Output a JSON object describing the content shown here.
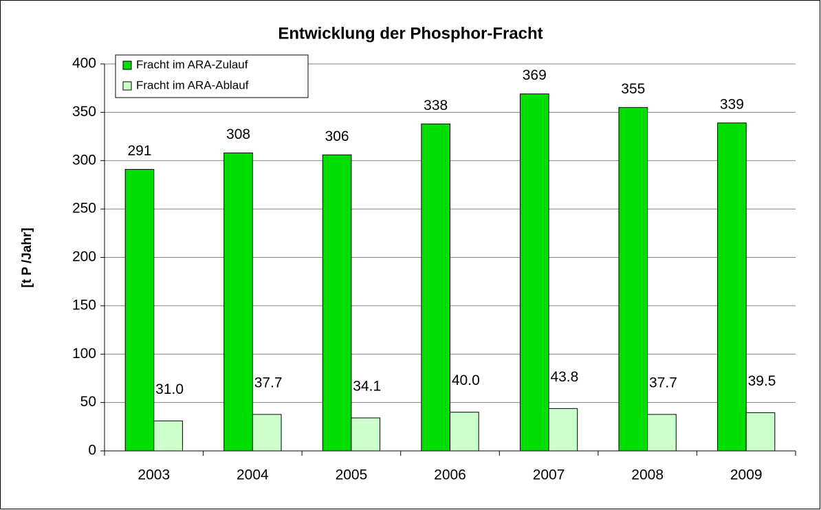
{
  "chart_data": {
    "type": "bar",
    "title": "Entwicklung der Phosphor-Fracht",
    "ylabel": "[t P /Jahr]",
    "categories": [
      "2003",
      "2004",
      "2005",
      "2006",
      "2007",
      "2008",
      "2009"
    ],
    "series": [
      {
        "name": "Fracht im ARA-Zulauf",
        "color": "#00dd00",
        "values": [
          291,
          308,
          306,
          338,
          369,
          355,
          339
        ]
      },
      {
        "name": "Fracht im ARA-Ablauf",
        "color": "#ccffcc",
        "values": [
          31.0,
          37.7,
          34.1,
          40.0,
          43.8,
          37.7,
          39.5
        ],
        "value_labels": [
          "31.0",
          "37.7",
          "34.1",
          "40.0",
          "43.8",
          "37.7",
          "39.5"
        ]
      }
    ],
    "ylim": [
      0,
      400
    ],
    "yticks": [
      0,
      50,
      100,
      150,
      200,
      250,
      300,
      350,
      400
    ],
    "grid": true,
    "legend": "upper left"
  }
}
